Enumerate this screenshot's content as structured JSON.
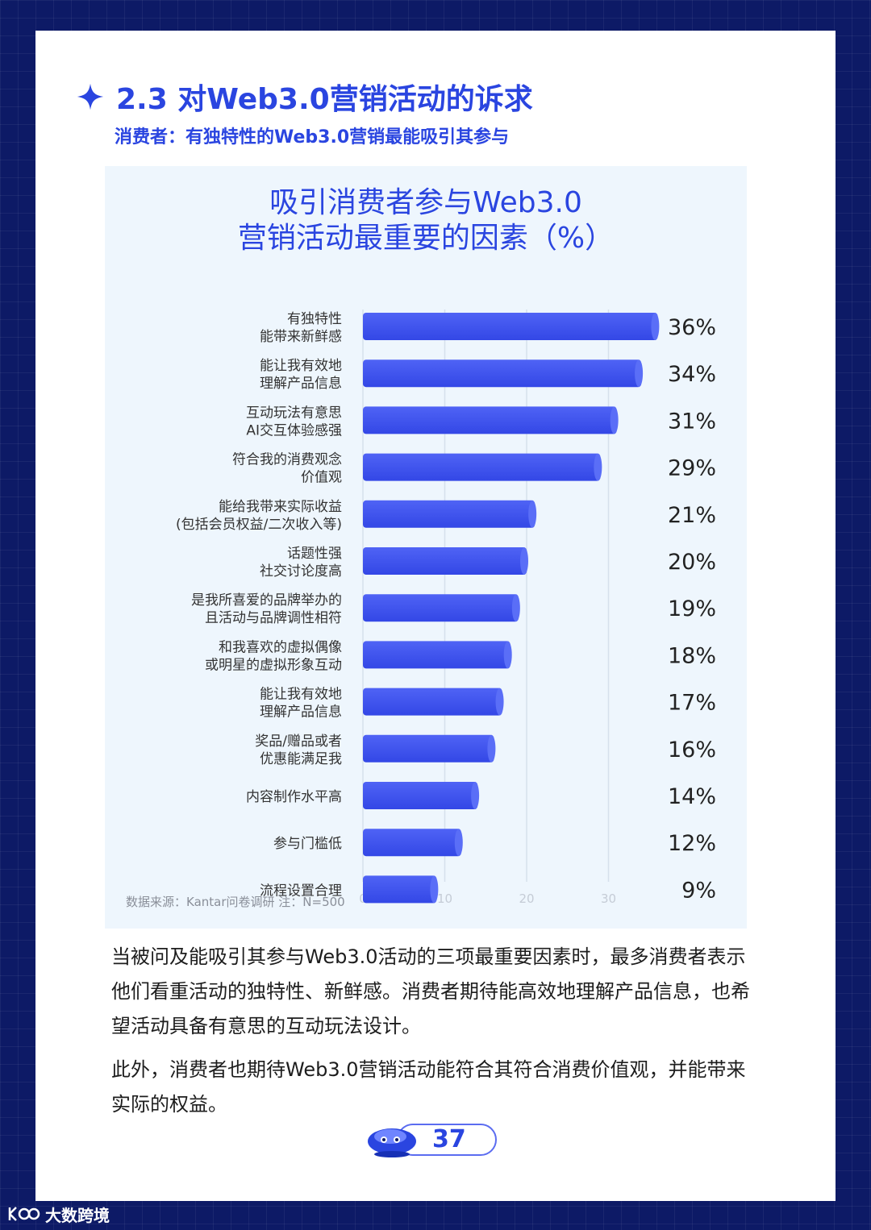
{
  "section": {
    "title": "2.3 对Web3.0营销活动的诉求",
    "subtitle": "消费者：有独特性的Web3.0营销最能吸引其参与"
  },
  "chart_data": {
    "type": "bar",
    "orientation": "horizontal",
    "title_line1": "吸引消费者参与Web3.0",
    "title_line2": "营销活动最重要的因素（%）",
    "categories": [
      [
        "有独特性",
        "能带来新鲜感"
      ],
      [
        "能让我有效地",
        "理解产品信息"
      ],
      [
        "互动玩法有意思",
        "AI交互体验感强"
      ],
      [
        "符合我的消费观念",
        "价值观"
      ],
      [
        "能给我带来实际收益",
        "(包括会员权益/二次收入等)"
      ],
      [
        "话题性强",
        "社交讨论度高"
      ],
      [
        "是我所喜爱的品牌举办的",
        "且活动与品牌调性相符"
      ],
      [
        "和我喜欢的虚拟偶像",
        "或明星的虚拟形象互动"
      ],
      [
        "能让我有效地",
        "理解产品信息"
      ],
      [
        "奖品/赠品或者",
        "优惠能满足我"
      ],
      [
        "内容制作水平高"
      ],
      [
        "参与门槛低"
      ],
      [
        "流程设置合理"
      ]
    ],
    "values": [
      36,
      34,
      31,
      29,
      21,
      20,
      19,
      18,
      17,
      16,
      14,
      12,
      9
    ],
    "value_labels": [
      "36%",
      "34%",
      "31%",
      "29%",
      "21%",
      "20%",
      "19%",
      "18%",
      "17%",
      "16%",
      "14%",
      "12%",
      "9%"
    ],
    "xlim": [
      0,
      36
    ],
    "x_ticks": [
      0,
      10,
      20,
      30
    ],
    "grid": true,
    "bar_color": "#3347e6",
    "bar_color_light": "#4f63f5",
    "source": "数据来源：Kantar问卷调研 注：N=500"
  },
  "body": {
    "p1": "当被问及能吸引其参与Web3.0活动的三项最重要因素时，最多消费者表示他们看重活动的独特性、新鲜感。消费者期待能高效地理解产品信息，也希望活动具备有意思的互动玩法设计。",
    "p2": "此外，消费者也期待Web3.0营销活动能符合其符合消费价值观，并能带来实际的权益。"
  },
  "page_number": "37",
  "watermark": "大数跨境",
  "colors": {
    "accent": "#2a45e0",
    "background": "#0d1a66",
    "panel": "#eef6fd"
  }
}
